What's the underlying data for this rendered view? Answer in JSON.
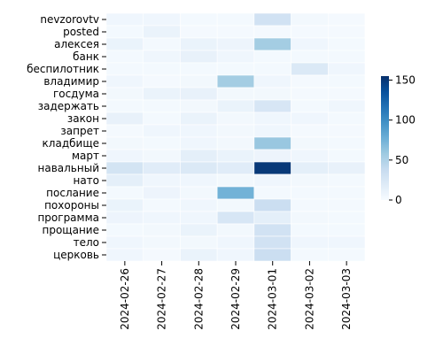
{
  "chart_data": {
    "type": "heatmap",
    "title": "",
    "xlabel": "",
    "ylabel": "",
    "x_categories": [
      "2024-02-26",
      "2024-02-27",
      "2024-02-28",
      "2024-02-29",
      "2024-03-01",
      "2024-03-02",
      "2024-03-03"
    ],
    "y_categories": [
      "nevzorovtv",
      "posted",
      "алексея",
      "банк",
      "беспилотник",
      "владимир",
      "госдума",
      "задержать",
      "закон",
      "запрет",
      "кладбище",
      "март",
      "навальный",
      "нато",
      "послание",
      "похороны",
      "программа",
      "прощание",
      "тело",
      "церковь"
    ],
    "values": [
      [
        6,
        6,
        3,
        3,
        30,
        4,
        2
      ],
      [
        3,
        10,
        2,
        2,
        2,
        2,
        2
      ],
      [
        10,
        3,
        10,
        8,
        55,
        6,
        3
      ],
      [
        3,
        6,
        12,
        6,
        3,
        3,
        3
      ],
      [
        3,
        3,
        3,
        3,
        3,
        22,
        6
      ],
      [
        6,
        2,
        4,
        55,
        6,
        2,
        3
      ],
      [
        4,
        10,
        12,
        4,
        4,
        2,
        2
      ],
      [
        3,
        3,
        4,
        10,
        25,
        3,
        6
      ],
      [
        12,
        3,
        10,
        4,
        6,
        6,
        3
      ],
      [
        2,
        6,
        6,
        4,
        6,
        2,
        2
      ],
      [
        4,
        3,
        6,
        4,
        60,
        4,
        3
      ],
      [
        6,
        4,
        15,
        10,
        8,
        6,
        3
      ],
      [
        28,
        18,
        22,
        18,
        150,
        15,
        12
      ],
      [
        15,
        6,
        6,
        4,
        6,
        4,
        3
      ],
      [
        3,
        8,
        4,
        75,
        3,
        3,
        3
      ],
      [
        10,
        3,
        6,
        4,
        35,
        3,
        3
      ],
      [
        8,
        6,
        6,
        25,
        15,
        4,
        3
      ],
      [
        3,
        4,
        10,
        4,
        30,
        3,
        3
      ],
      [
        6,
        4,
        4,
        6,
        30,
        6,
        6
      ],
      [
        6,
        2,
        10,
        6,
        35,
        3,
        3
      ]
    ],
    "colorbar": {
      "min": 0,
      "max": 155,
      "ticks": [
        0,
        50,
        100,
        150
      ]
    },
    "colormap": "Blues",
    "cell_edge_color": "#ffffff"
  }
}
